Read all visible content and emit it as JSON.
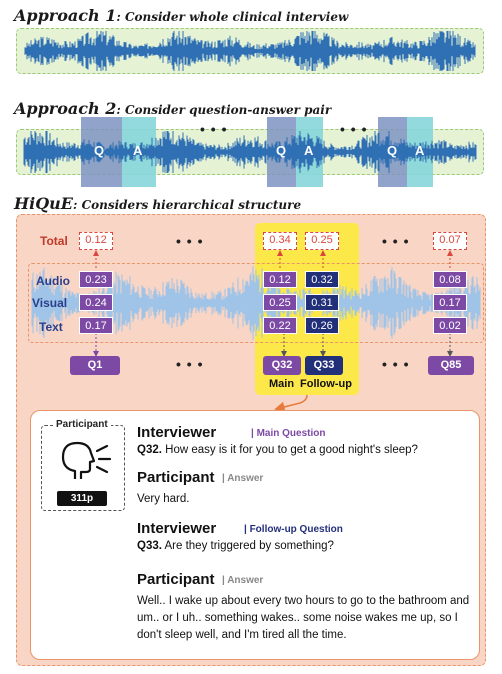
{
  "approach1": {
    "prefix": "Approach 1",
    "suffix": ": Consider whole clinical interview"
  },
  "approach2": {
    "prefix": "Approach 2",
    "suffix": ": Consider question-answer pair",
    "q_label": "Q",
    "a_label": "A",
    "ellipsis": "• • •"
  },
  "hique": {
    "prefix": "HiQuE",
    "suffix": ": Considers hierarchical structure"
  },
  "ellipsis": "• • •",
  "rows": {
    "total": "Total",
    "audio": "Audio",
    "visual": "Visual",
    "text": "Text"
  },
  "q1": {
    "total": "0.12",
    "audio": "0.23",
    "visual": "0.24",
    "text": "0.17",
    "label": "Q1"
  },
  "q32": {
    "total": "0.34",
    "audio": "0.12",
    "visual": "0.25",
    "text": "0.22",
    "label": "Q32"
  },
  "q33": {
    "total": "0.25",
    "audio": "0.32",
    "visual": "0.31",
    "text": "0.26",
    "label": "Q33"
  },
  "q85": {
    "total": "0.07",
    "audio": "0.08",
    "visual": "0.17",
    "text": "0.02",
    "label": "Q85"
  },
  "main_label": "Main",
  "followup_label": "Follow-up",
  "participant_card": {
    "title": "Participant",
    "id": "311p"
  },
  "dialog": {
    "interviewer1": "Interviewer",
    "tag1": "| Main Question",
    "q32_num": "Q32.",
    "q32_text": " How easy is it for you to get a good night's sleep?",
    "participant1": "Participant",
    "answer_tag1": "| Answer",
    "answer1": "Very hard.",
    "interviewer2": "Interviewer",
    "tag2": "| Follow-up Question",
    "q33_num": "Q33.",
    "q33_text": " Are they triggered by something?",
    "participant2": "Participant",
    "answer_tag2": "| Answer",
    "answer2": "Well.. I wake up about every two hours to go to the bathroom and um.. or I uh.. something wakes.. some noise wakes me up, so I don't sleep well, and I'm tired all the time."
  },
  "colors": {
    "purple": "#7c4aa5",
    "navy": "#22307a",
    "red": "#d9473c",
    "wave": "#2f6fb3",
    "yellow": "#fde84a"
  }
}
